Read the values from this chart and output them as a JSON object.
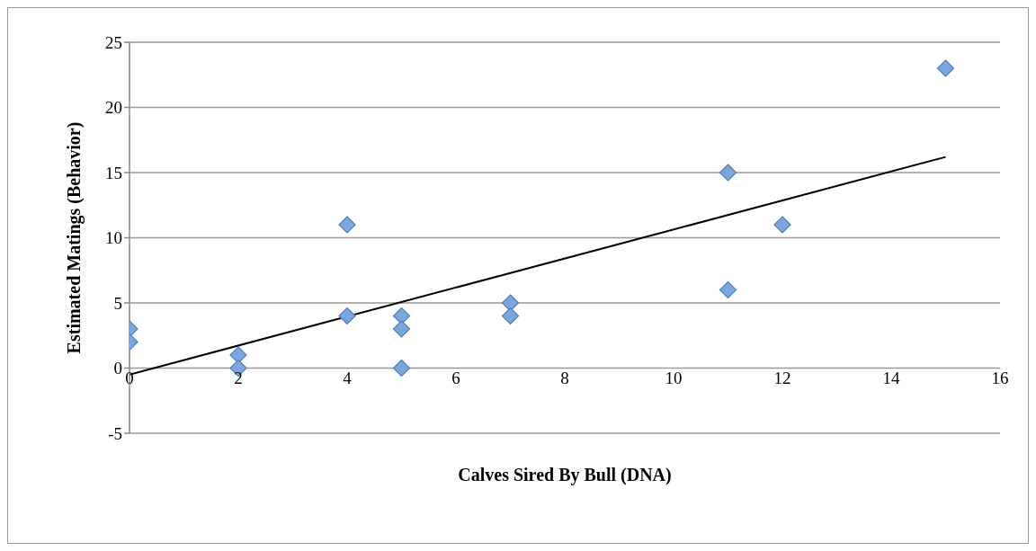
{
  "chart_data": {
    "type": "scatter",
    "xlabel": "Calves Sired By Bull (DNA)",
    "ylabel": "Estimated Matings (Behavior)",
    "xlim": [
      0,
      16
    ],
    "xticks": [
      0,
      2,
      4,
      6,
      8,
      10,
      12,
      14,
      16
    ],
    "ylim": [
      -5,
      25
    ],
    "yticks": [
      -5,
      0,
      5,
      10,
      15,
      20,
      25
    ],
    "grid": "y",
    "legend": false,
    "series": [
      {
        "marker": "diamond",
        "color": "#7ba7dd",
        "x": [
          0,
          0,
          2,
          2,
          4,
          4,
          5,
          5,
          5,
          7,
          7,
          11,
          11,
          12,
          15
        ],
        "values": [
          3,
          2,
          1,
          0,
          11,
          4,
          4,
          3,
          0,
          5,
          4,
          15,
          6,
          11,
          23
        ]
      },
      {
        "type": "line",
        "color": "#000000",
        "x": [
          0,
          15
        ],
        "values": [
          -0.5,
          16.2
        ]
      }
    ]
  }
}
